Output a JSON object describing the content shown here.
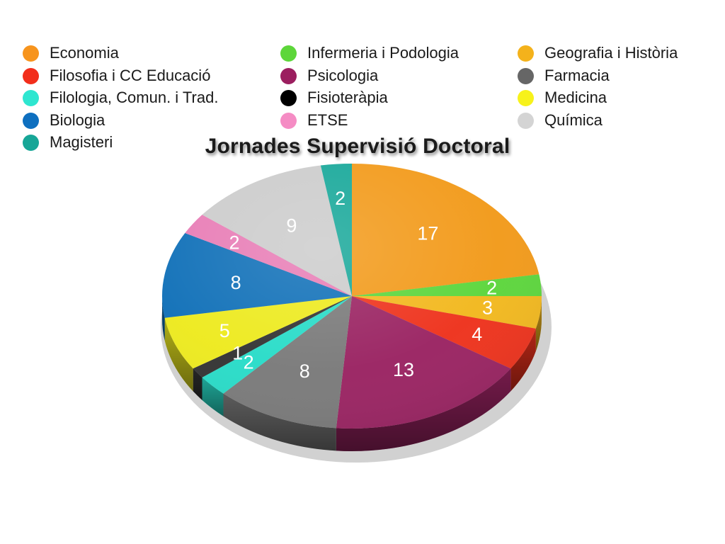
{
  "chart_data": {
    "type": "pie",
    "title": "Jornades Supervisió Doctoral",
    "categories": [
      "Economia",
      "Infermeria i Podologia",
      "Geografia i Història",
      "Filosofia i CC Educació",
      "Psicologia",
      "Farmacia",
      "Filologia, Comun. i Trad.",
      "Fisioteràpia",
      "Medicina",
      "Biologia",
      "ETSE",
      "Química",
      "Magisteri"
    ],
    "values": [
      17,
      2,
      3,
      4,
      13,
      8,
      2,
      1,
      5,
      8,
      2,
      9,
      2
    ],
    "colors": [
      "#F29A1A",
      "#5CD63C",
      "#F2B81E",
      "#EE321C",
      "#9A2362",
      "#7A7A7A",
      "#28DCC8",
      "#333333",
      "#EDEA1E",
      "#1070B8",
      "#E87DB6",
      "#CCCCCC",
      "#18A89A"
    ],
    "legend": {
      "placement": "top",
      "columns": [
        [
          "Economia",
          "Filosofia i CC Educació",
          "Filologia, Comun. i Trad.",
          "Biologia",
          "Magisteri"
        ],
        [
          "Infermeria i Podologia",
          "Psicologia",
          "Fisioteràpia",
          "ETSE"
        ],
        [
          "Geografia i Història",
          "Farmacia",
          "Medicina",
          "Química"
        ]
      ]
    },
    "legend_colors": {
      "Economia": "#F7941D",
      "Filosofia i CC Educació": "#F22E1B",
      "Filologia, Comun. i Trad.": "#2EE6D0",
      "Biologia": "#0E6FBF",
      "Magisteri": "#17A697",
      "Infermeria i Podologia": "#5DD63A",
      "Psicologia": "#9B1E5F",
      "Fisioteràpia": "#000000",
      "ETSE": "#F58CC4",
      "Geografia i Història": "#F4B21B",
      "Farmacia": "#666666",
      "Medicina": "#F7F21B",
      "Química": "#D4D4D4"
    },
    "style": "3d-tilted"
  }
}
